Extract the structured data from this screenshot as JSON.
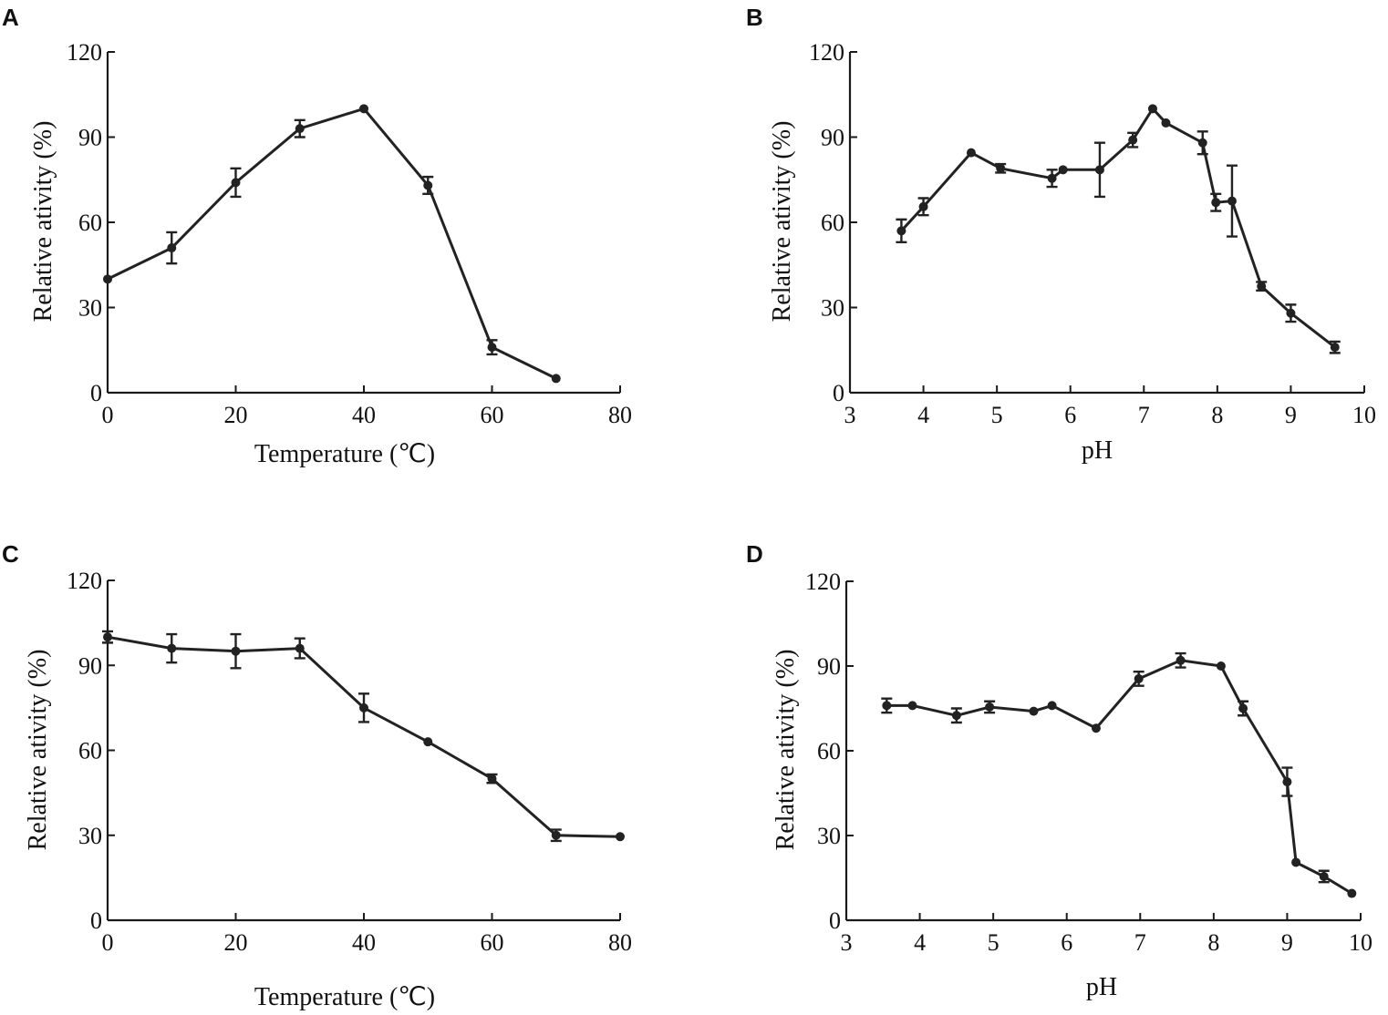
{
  "chart_data": [
    {
      "panel": "A",
      "type": "line",
      "xlabel": "Temperature (℃)",
      "ylabel": "Relative ativity (%)",
      "xlim": [
        0,
        80
      ],
      "ylim": [
        0,
        120
      ],
      "xticks": [
        0,
        20,
        40,
        60,
        80
      ],
      "yticks": [
        0,
        30,
        60,
        90,
        120
      ],
      "x": [
        0,
        10,
        20,
        30,
        40,
        50,
        60,
        70
      ],
      "y": [
        40,
        51,
        74,
        93,
        100,
        73,
        16,
        5
      ],
      "err": [
        0,
        5.5,
        5,
        3,
        0,
        3,
        2.5,
        0
      ]
    },
    {
      "panel": "B",
      "type": "line",
      "xlabel": "pH",
      "ylabel": "Relative ativity (%)",
      "xlim": [
        3,
        10
      ],
      "ylim": [
        0,
        120
      ],
      "xticks": [
        3,
        4,
        5,
        6,
        7,
        8,
        9,
        10
      ],
      "yticks": [
        0,
        30,
        60,
        90,
        120
      ],
      "x": [
        3.7,
        4.0,
        4.65,
        5.05,
        5.75,
        5.9,
        6.4,
        6.85,
        7.12,
        7.3,
        7.8,
        7.98,
        8.2,
        8.6,
        9.0,
        9.6
      ],
      "y": [
        57,
        65.5,
        84.5,
        79,
        75.5,
        78.5,
        78.5,
        89,
        100,
        95,
        88,
        67,
        67.5,
        37.5,
        28,
        16
      ],
      "err": [
        4,
        3,
        0,
        1.5,
        3,
        0,
        9.5,
        2.5,
        0,
        0,
        4,
        3,
        12.5,
        1.5,
        3,
        2
      ]
    },
    {
      "panel": "C",
      "type": "line",
      "xlabel": "Temperature (℃)",
      "ylabel": "Relative ativity (%)",
      "xlim": [
        0,
        80
      ],
      "ylim": [
        0,
        120
      ],
      "xticks": [
        0,
        20,
        40,
        60,
        80
      ],
      "yticks": [
        0,
        30,
        60,
        90,
        120
      ],
      "x": [
        0,
        10,
        20,
        30,
        40,
        50,
        60,
        70,
        80
      ],
      "y": [
        100,
        96,
        95,
        96,
        75,
        63,
        50,
        30,
        29.5
      ],
      "err": [
        2,
        5,
        6,
        3.5,
        5,
        0,
        1.5,
        2,
        0
      ]
    },
    {
      "panel": "D",
      "type": "line",
      "xlabel": "pH",
      "ylabel": "Relative ativity (%)",
      "xlim": [
        3,
        10
      ],
      "ylim": [
        0,
        120
      ],
      "xticks": [
        3,
        4,
        5,
        6,
        7,
        8,
        9,
        10
      ],
      "yticks": [
        0,
        30,
        60,
        90,
        120
      ],
      "x": [
        3.55,
        3.9,
        4.5,
        4.95,
        5.55,
        5.8,
        6.4,
        6.98,
        7.55,
        8.1,
        8.4,
        9.0,
        9.12,
        9.5,
        9.88
      ],
      "y": [
        76,
        76,
        72.5,
        75.5,
        74,
        76,
        68,
        85.5,
        92,
        90,
        75,
        49,
        20.5,
        15.5,
        9.5
      ],
      "err": [
        2.5,
        0,
        2.5,
        2,
        0,
        0,
        0,
        2.5,
        2.5,
        0,
        2.5,
        5,
        0,
        2,
        0
      ]
    }
  ]
}
